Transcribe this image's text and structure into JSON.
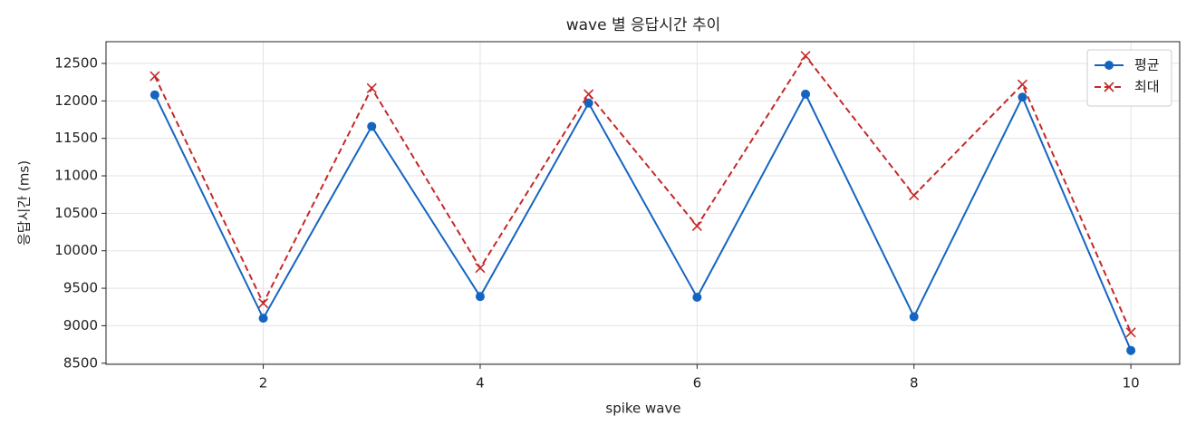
{
  "chart_data": {
    "type": "line",
    "title": "wave 별 응답시간 추이",
    "xlabel": "spike wave",
    "ylabel": "응답시간 (ms)",
    "x": [
      1,
      2,
      3,
      4,
      5,
      6,
      7,
      8,
      9,
      10
    ],
    "series": [
      {
        "name": "평균",
        "color": "#1565c0",
        "marker": "o",
        "linestyle": "solid",
        "values": [
          12080,
          9100,
          11660,
          9390,
          11970,
          9380,
          12090,
          9120,
          12050,
          8670
        ]
      },
      {
        "name": "최대",
        "color": "#c62828",
        "marker": "x",
        "linestyle": "dashed",
        "values": [
          12330,
          9300,
          12170,
          9770,
          12090,
          10330,
          12600,
          10740,
          12220,
          8910
        ]
      }
    ],
    "xlim": [
      0.55,
      10.45
    ],
    "xticks": [
      2,
      4,
      6,
      8,
      10
    ],
    "ylim": [
      8485,
      12790
    ],
    "yticks": [
      8500,
      9000,
      9500,
      10000,
      10500,
      11000,
      11500,
      12000,
      12500
    ],
    "grid": true,
    "legend": "upper right"
  }
}
